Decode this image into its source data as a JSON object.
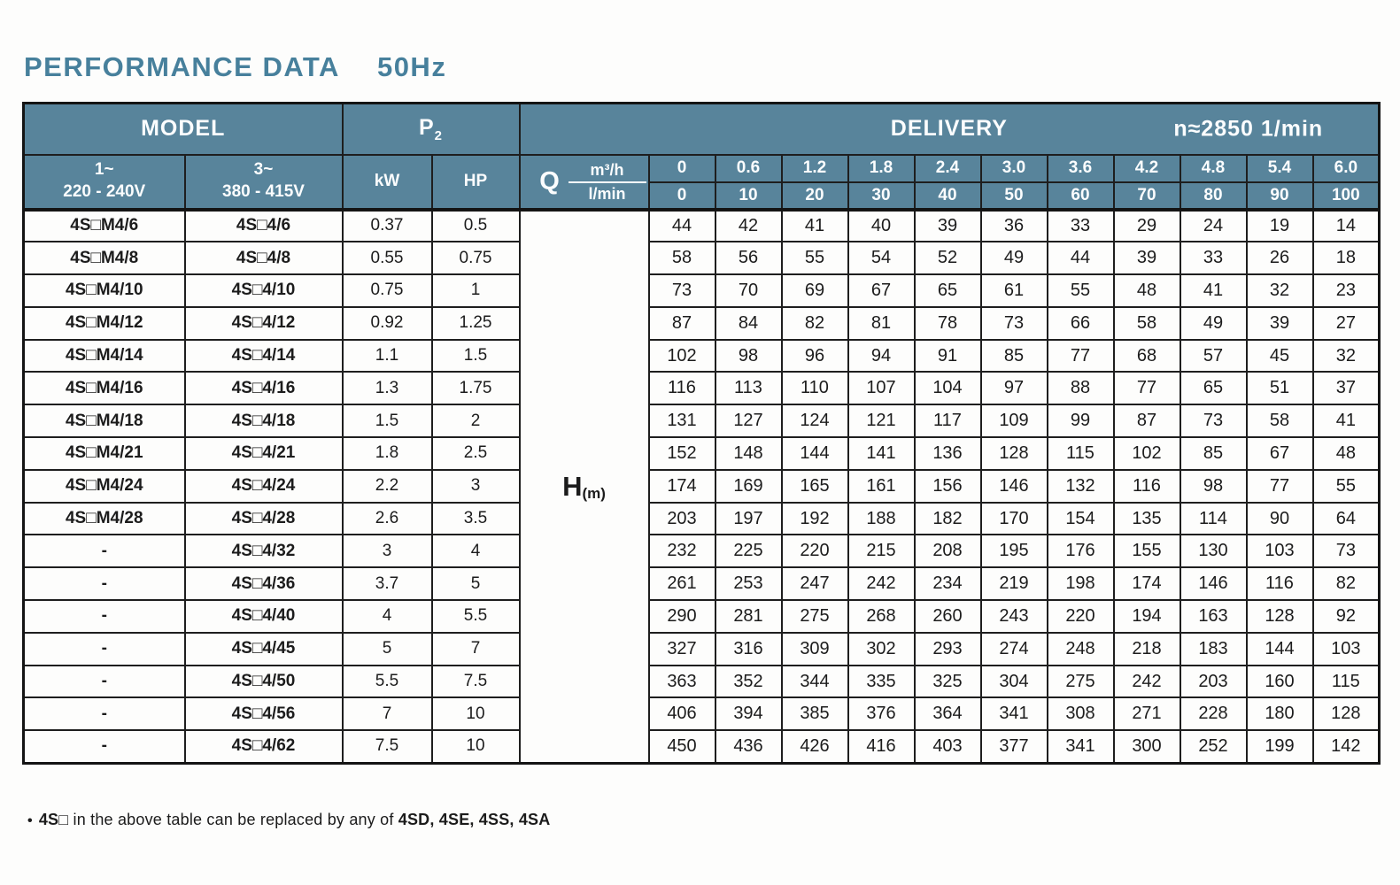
{
  "title": "PERFORMANCE  DATA",
  "frequency": "50Hz",
  "colors": {
    "header_bg": "#58849b",
    "title_text": "#47809c",
    "border": "#141414",
    "header_text": "#fbfdfe",
    "body_text": "#1c1c1c"
  },
  "table": {
    "header": {
      "model": "MODEL",
      "p2_base": "P",
      "p2_sub": "2",
      "delivery": "DELIVERY",
      "speed": "n≈2850 1/min",
      "phase1_line1": "1~",
      "phase1_line2": "220 - 240V",
      "phase3_line1": "3~",
      "phase3_line2": "380 - 415V",
      "kw": "kW",
      "hp": "HP",
      "q": "Q",
      "m3h_unit": "m³/h",
      "lmin_unit": "l/min",
      "m3h_values": [
        "0",
        "0.6",
        "1.2",
        "1.8",
        "2.4",
        "3.0",
        "3.6",
        "4.2",
        "4.8",
        "5.4",
        "6.0"
      ],
      "lmin_values": [
        "0",
        "10",
        "20",
        "30",
        "40",
        "50",
        "60",
        "70",
        "80",
        "90",
        "100"
      ]
    },
    "h_label": "H",
    "h_unit": "(m)",
    "rows": [
      {
        "model1": "4S□M4/6",
        "model3": "4S□4/6",
        "kw": "0.37",
        "hp": "0.5",
        "values": [
          44,
          42,
          41,
          40,
          39,
          36,
          33,
          29,
          24,
          19,
          14
        ]
      },
      {
        "model1": "4S□M4/8",
        "model3": "4S□4/8",
        "kw": "0.55",
        "hp": "0.75",
        "values": [
          58,
          56,
          55,
          54,
          52,
          49,
          44,
          39,
          33,
          26,
          18
        ]
      },
      {
        "model1": "4S□M4/10",
        "model3": "4S□4/10",
        "kw": "0.75",
        "hp": "1",
        "values": [
          73,
          70,
          69,
          67,
          65,
          61,
          55,
          48,
          41,
          32,
          23
        ]
      },
      {
        "model1": "4S□M4/12",
        "model3": "4S□4/12",
        "kw": "0.92",
        "hp": "1.25",
        "values": [
          87,
          84,
          82,
          81,
          78,
          73,
          66,
          58,
          49,
          39,
          27
        ]
      },
      {
        "model1": "4S□M4/14",
        "model3": "4S□4/14",
        "kw": "1.1",
        "hp": "1.5",
        "values": [
          102,
          98,
          96,
          94,
          91,
          85,
          77,
          68,
          57,
          45,
          32
        ]
      },
      {
        "model1": "4S□M4/16",
        "model3": "4S□4/16",
        "kw": "1.3",
        "hp": "1.75",
        "values": [
          116,
          113,
          110,
          107,
          104,
          97,
          88,
          77,
          65,
          51,
          37
        ]
      },
      {
        "model1": "4S□M4/18",
        "model3": "4S□4/18",
        "kw": "1.5",
        "hp": "2",
        "values": [
          131,
          127,
          124,
          121,
          117,
          109,
          99,
          87,
          73,
          58,
          41
        ]
      },
      {
        "model1": "4S□M4/21",
        "model3": "4S□4/21",
        "kw": "1.8",
        "hp": "2.5",
        "values": [
          152,
          148,
          144,
          141,
          136,
          128,
          115,
          102,
          85,
          67,
          48
        ]
      },
      {
        "model1": "4S□M4/24",
        "model3": "4S□4/24",
        "kw": "2.2",
        "hp": "3",
        "values": [
          174,
          169,
          165,
          161,
          156,
          146,
          132,
          116,
          98,
          77,
          55
        ]
      },
      {
        "model1": "4S□M4/28",
        "model3": "4S□4/28",
        "kw": "2.6",
        "hp": "3.5",
        "values": [
          203,
          197,
          192,
          188,
          182,
          170,
          154,
          135,
          114,
          90,
          64
        ]
      },
      {
        "model1": "-",
        "model3": "4S□4/32",
        "kw": "3",
        "hp": "4",
        "values": [
          232,
          225,
          220,
          215,
          208,
          195,
          176,
          155,
          130,
          103,
          73
        ]
      },
      {
        "model1": "-",
        "model3": "4S□4/36",
        "kw": "3.7",
        "hp": "5",
        "values": [
          261,
          253,
          247,
          242,
          234,
          219,
          198,
          174,
          146,
          116,
          82
        ]
      },
      {
        "model1": "-",
        "model3": "4S□4/40",
        "kw": "4",
        "hp": "5.5",
        "values": [
          290,
          281,
          275,
          268,
          260,
          243,
          220,
          194,
          163,
          128,
          92
        ]
      },
      {
        "model1": "-",
        "model3": "4S□4/45",
        "kw": "5",
        "hp": "7",
        "values": [
          327,
          316,
          309,
          302,
          293,
          274,
          248,
          218,
          183,
          144,
          103
        ]
      },
      {
        "model1": "-",
        "model3": "4S□4/50",
        "kw": "5.5",
        "hp": "7.5",
        "values": [
          363,
          352,
          344,
          335,
          325,
          304,
          275,
          242,
          203,
          160,
          115
        ]
      },
      {
        "model1": "-",
        "model3": "4S□4/56",
        "kw": "7",
        "hp": "10",
        "values": [
          406,
          394,
          385,
          376,
          364,
          341,
          308,
          271,
          228,
          180,
          128
        ]
      },
      {
        "model1": "-",
        "model3": "4S□4/62",
        "kw": "7.5",
        "hp": "10",
        "values": [
          450,
          436,
          426,
          416,
          403,
          377,
          341,
          300,
          252,
          199,
          142
        ]
      }
    ]
  },
  "footnote": {
    "bullet": "•",
    "lead": "4S□",
    "middle": " in the above table can be replaced by any of ",
    "models": "4SD, 4SE, 4SS, 4SA"
  }
}
